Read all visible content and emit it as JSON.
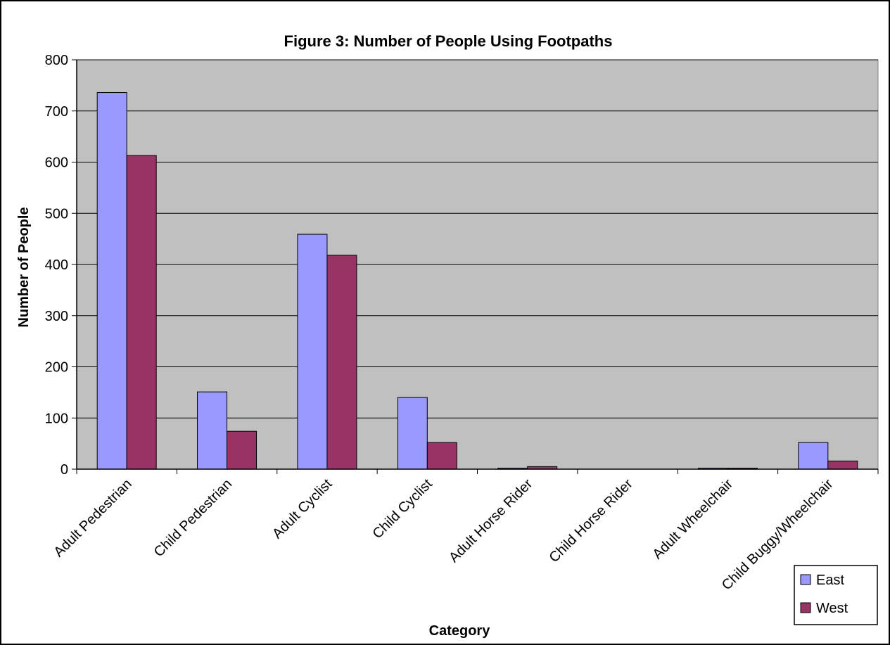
{
  "chart_data": {
    "type": "bar",
    "title": "Figure 3: Number of People Using Footpaths",
    "xlabel": "Category",
    "ylabel": "Number of People",
    "ylim": [
      0,
      800
    ],
    "yticks": [
      0,
      100,
      200,
      300,
      400,
      500,
      600,
      700,
      800
    ],
    "grid": true,
    "legend_position": "bottom-right",
    "categories": [
      "Adult Pedestrian",
      "Child Pedestrian",
      "Adult Cyclist",
      "Child Cyclist",
      "Adult Horse Rider",
      "Child Horse Rider",
      "Adult Wheelchair",
      "Child Buggy/Wheelchair"
    ],
    "series": [
      {
        "name": "East",
        "color": "#9999ff",
        "values": [
          736,
          151,
          459,
          140,
          2,
          0,
          2,
          52
        ]
      },
      {
        "name": "West",
        "color": "#993366",
        "values": [
          613,
          74,
          418,
          52,
          5,
          0,
          2,
          16
        ]
      }
    ],
    "plot_background": "#c0c0c0"
  }
}
